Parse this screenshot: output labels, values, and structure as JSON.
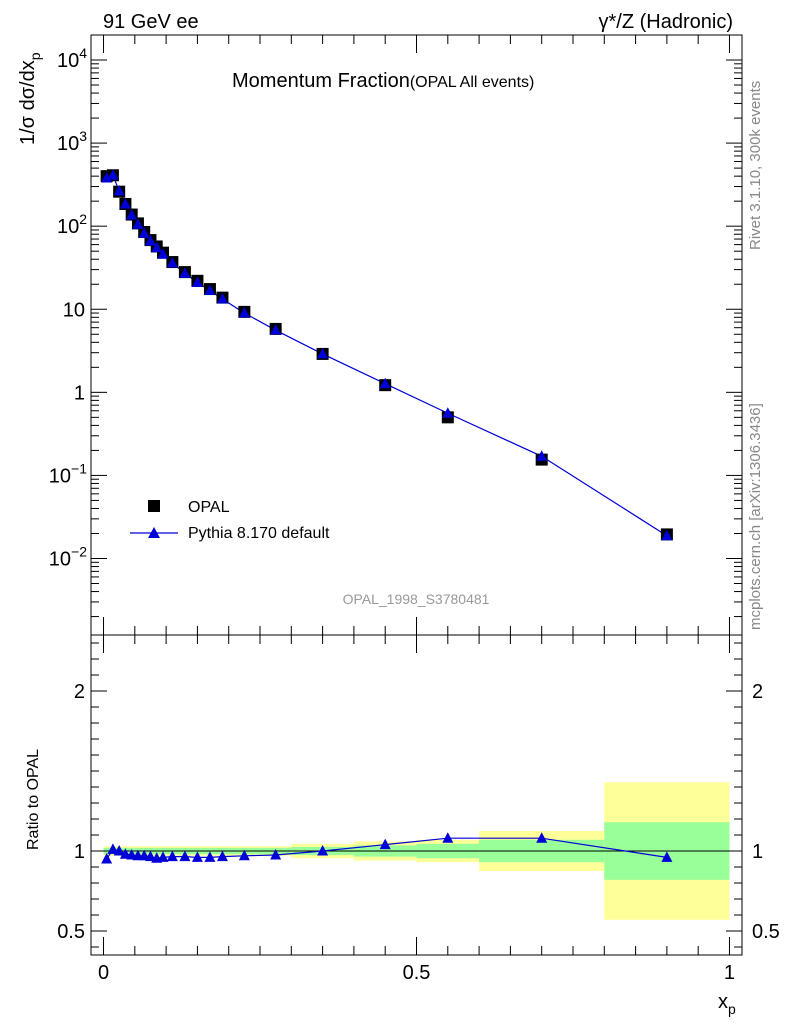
{
  "header": {
    "left": "91 GeV ee",
    "right": "γ*/Z (Hadronic)"
  },
  "side_labels": {
    "rivet": "Rivet 3.1.10,  300k events",
    "mcplots": "mcplots.cern.ch [arXiv:1306.3436]"
  },
  "chart_data": [
    {
      "type": "scatter",
      "title_main": "Momentum Fraction",
      "title_sub": "(OPAL All events)",
      "ylabel": "1/σ dσ/dx",
      "ylabel_sub": "p",
      "yscale": "log",
      "ylim": [
        0.0012,
        20000
      ],
      "xlim": [
        -0.02,
        1.02
      ],
      "y_ticks": [
        {
          "value": 0.01,
          "label": "10",
          "exp": "−2"
        },
        {
          "value": 0.1,
          "label": "10",
          "exp": "−1"
        },
        {
          "value": 1,
          "label": "1",
          "exp": ""
        },
        {
          "value": 10,
          "label": "10",
          "exp": ""
        },
        {
          "value": 100,
          "label": "10",
          "exp": "2"
        },
        {
          "value": 1000,
          "label": "10",
          "exp": "3"
        },
        {
          "value": 10000,
          "label": "10",
          "exp": "4"
        }
      ],
      "watermark": "OPAL_1998_S3780481",
      "legend": {
        "placement": "bottom-left",
        "entries": [
          "OPAL",
          "Pythia 8.170 default"
        ]
      },
      "x": [
        0.005,
        0.015,
        0.025,
        0.035,
        0.045,
        0.055,
        0.065,
        0.075,
        0.085,
        0.095,
        0.11,
        0.13,
        0.15,
        0.17,
        0.19,
        0.225,
        0.275,
        0.35,
        0.45,
        0.55,
        0.7,
        0.9
      ],
      "series": [
        {
          "name": "OPAL",
          "marker": "square",
          "color": "#000000",
          "values": [
            400,
            410,
            260,
            185,
            138,
            108,
            85,
            68,
            57,
            48,
            37,
            28,
            22,
            17.5,
            13.8,
            9.3,
            5.8,
            2.9,
            1.22,
            0.5,
            0.155,
            0.0195
          ]
        },
        {
          "name": "Pythia 8.170 default",
          "marker": "triangle",
          "color": "#0000d8",
          "values": [
            380,
            410,
            265,
            185,
            136,
            105,
            82,
            66,
            55,
            46,
            36,
            27,
            21,
            16.8,
            13.3,
            9.0,
            5.6,
            2.9,
            1.27,
            0.56,
            0.17,
            0.0188
          ]
        }
      ]
    },
    {
      "type": "line",
      "ylabel": "Ratio to OPAL",
      "xlabel": "x",
      "xlabel_sub": "p",
      "ylim": [
        0.35,
        2.35
      ],
      "xlim": [
        -0.02,
        1.02
      ],
      "x_ticks": [
        {
          "value": 0,
          "label": "0"
        },
        {
          "value": 0.5,
          "label": "0.5"
        },
        {
          "value": 1,
          "label": "1"
        }
      ],
      "y_ticks": [
        {
          "value": 0.5,
          "label": "0.5"
        },
        {
          "value": 1,
          "label": "1"
        },
        {
          "value": 2,
          "label": "2"
        }
      ],
      "reference_line": 1,
      "bands": [
        {
          "x0": 0.0,
          "x1": 0.2,
          "green": [
            0.98,
            1.02
          ],
          "yellow": [
            0.97,
            1.03
          ]
        },
        {
          "x0": 0.2,
          "x1": 0.3,
          "green": [
            0.98,
            1.02
          ],
          "yellow": [
            0.97,
            1.03
          ]
        },
        {
          "x0": 0.3,
          "x1": 0.4,
          "green": [
            0.975,
            1.025
          ],
          "yellow": [
            0.955,
            1.045
          ]
        },
        {
          "x0": 0.4,
          "x1": 0.5,
          "green": [
            0.965,
            1.035
          ],
          "yellow": [
            0.94,
            1.06
          ]
        },
        {
          "x0": 0.5,
          "x1": 0.6,
          "green": [
            0.955,
            1.045
          ],
          "yellow": [
            0.93,
            1.07
          ]
        },
        {
          "x0": 0.6,
          "x1": 0.8,
          "green": [
            0.93,
            1.07
          ],
          "yellow": [
            0.875,
            1.125
          ]
        },
        {
          "x0": 0.8,
          "x1": 1.0,
          "green": [
            0.82,
            1.18
          ],
          "yellow": [
            0.57,
            1.43
          ]
        }
      ],
      "x": [
        0.005,
        0.015,
        0.025,
        0.035,
        0.045,
        0.055,
        0.065,
        0.075,
        0.085,
        0.095,
        0.11,
        0.13,
        0.15,
        0.17,
        0.19,
        0.225,
        0.275,
        0.35,
        0.45,
        0.55,
        0.7,
        0.9
      ],
      "series": [
        {
          "name": "Pythia 8.170 default",
          "color": "#0000d8",
          "values": [
            0.95,
            1.01,
            1.0,
            0.98,
            0.975,
            0.97,
            0.97,
            0.965,
            0.955,
            0.96,
            0.965,
            0.965,
            0.96,
            0.96,
            0.965,
            0.97,
            0.975,
            1.0,
            1.04,
            1.08,
            1.08,
            0.96
          ]
        }
      ]
    }
  ]
}
